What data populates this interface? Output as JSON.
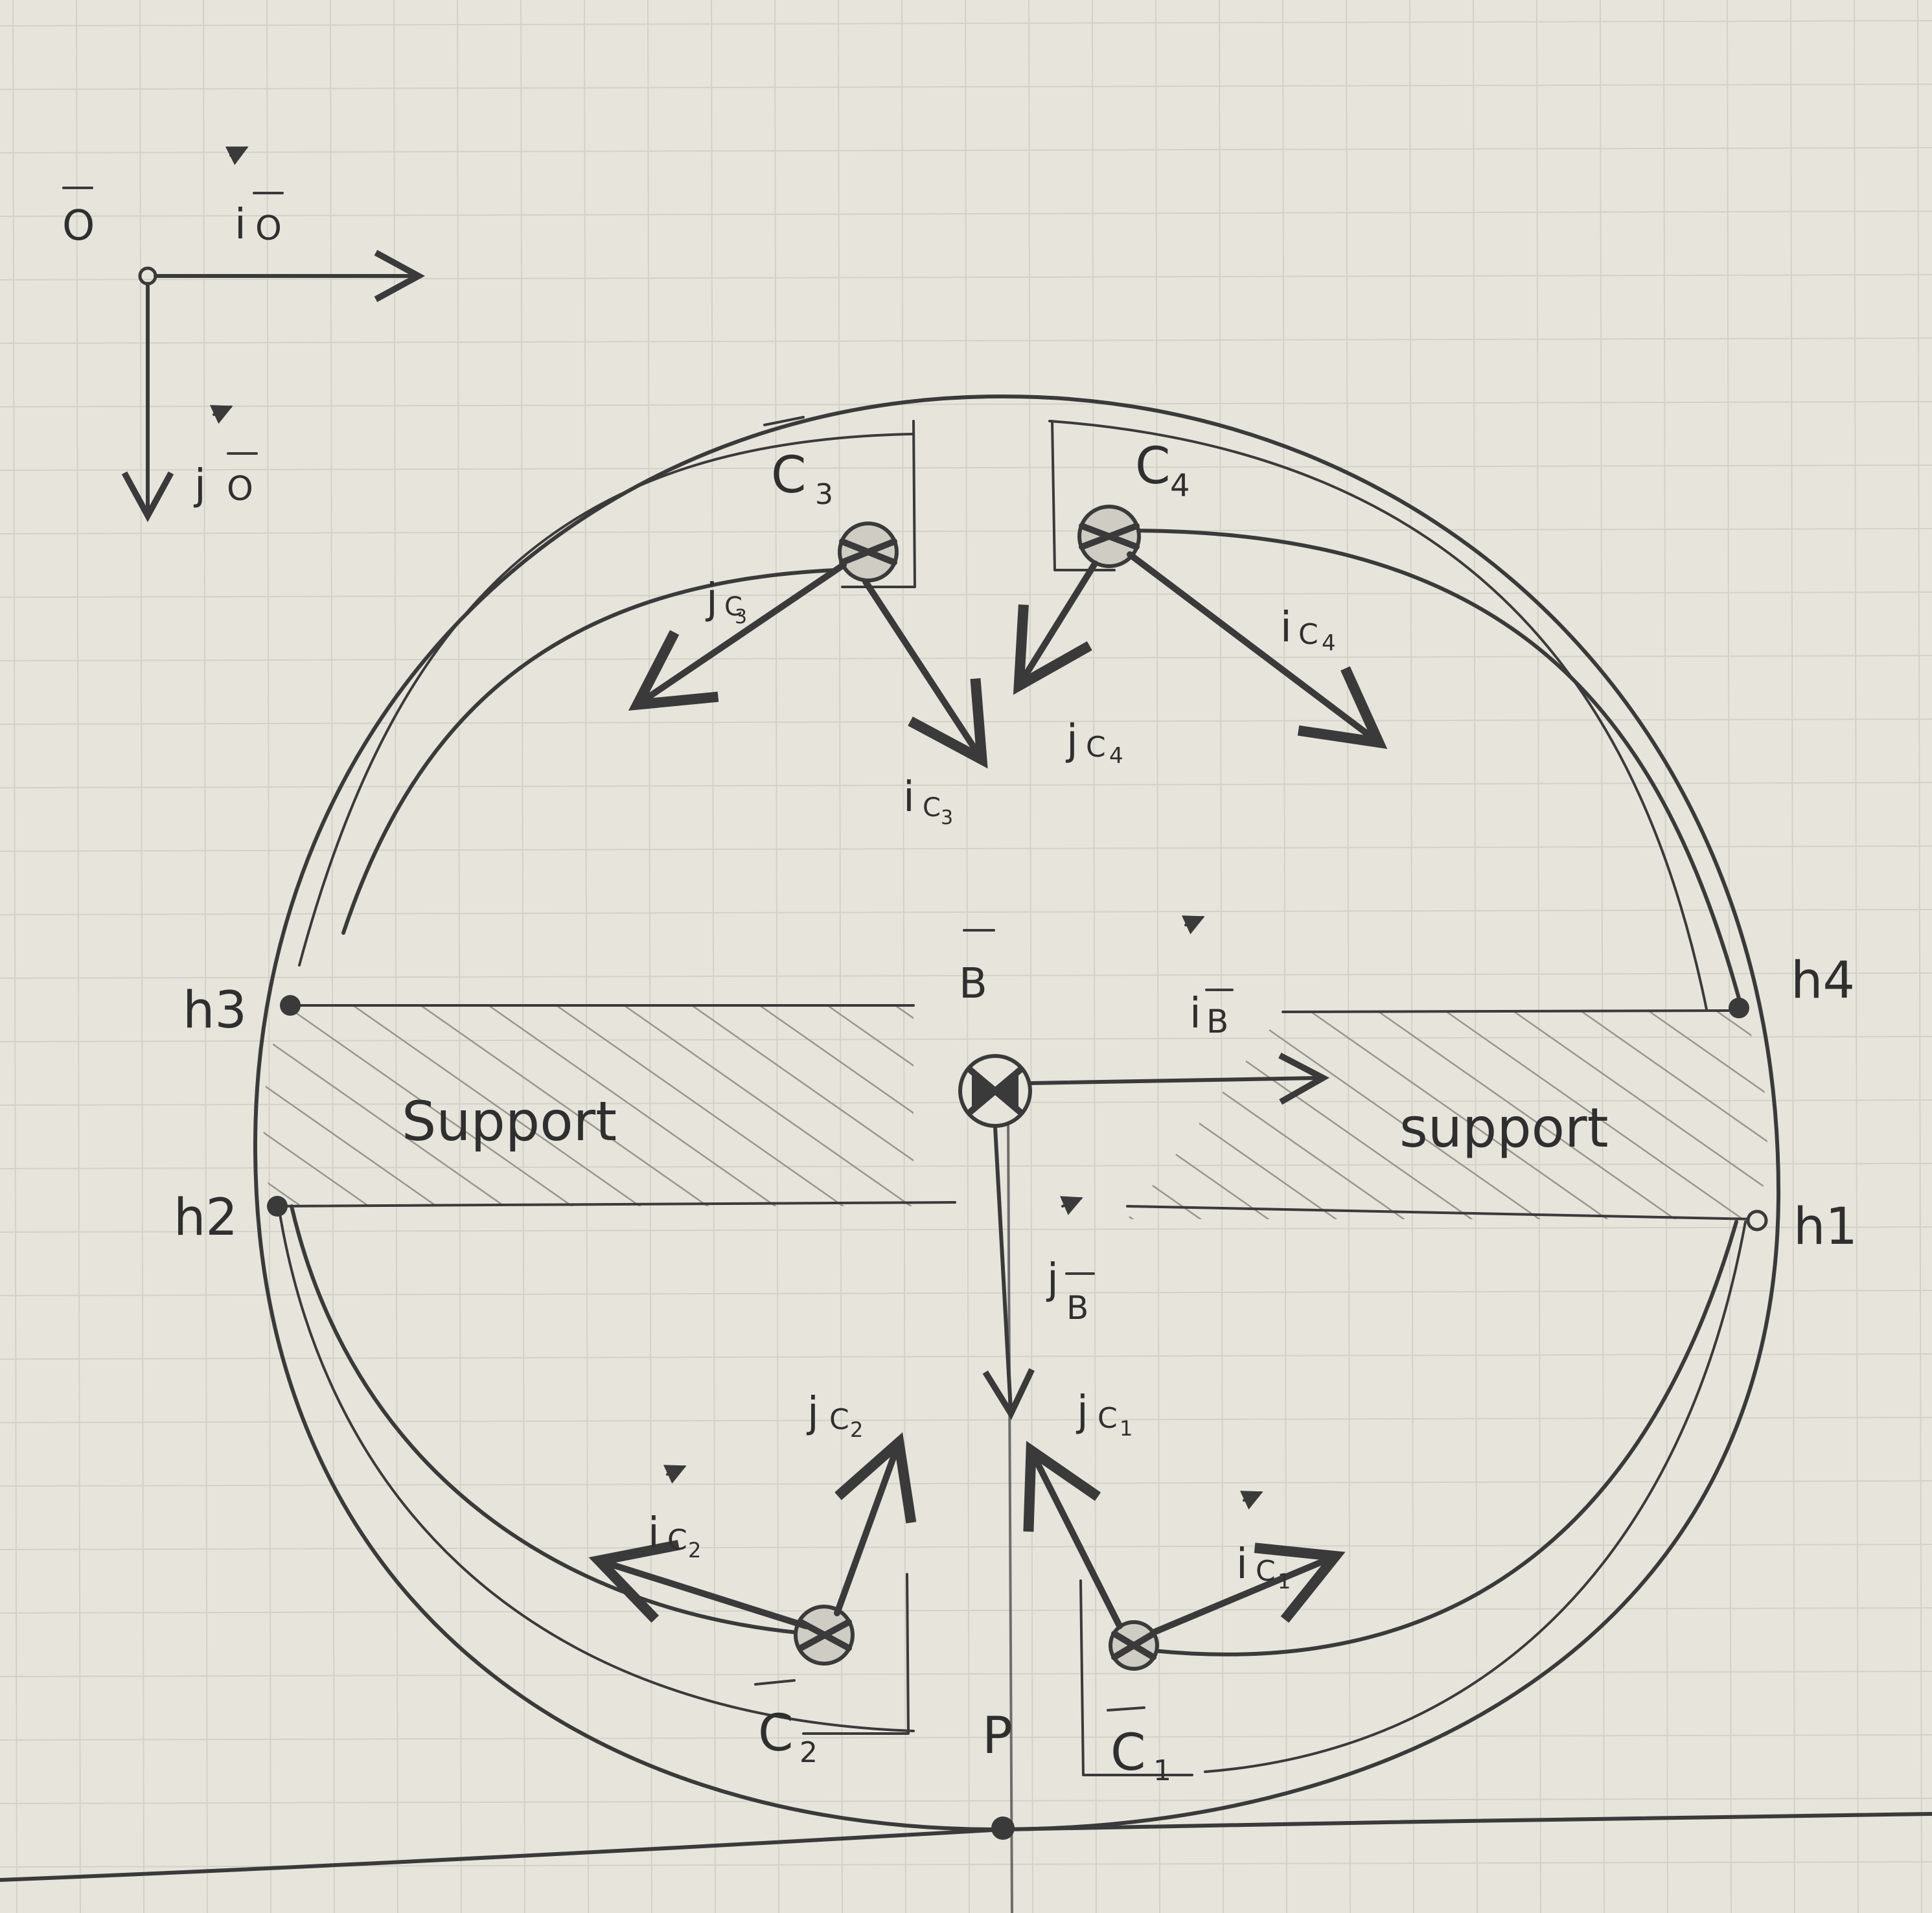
{
  "frames": {
    "origin": {
      "point": "O",
      "i": "i",
      "j": "j",
      "sub": "O"
    },
    "body": {
      "point": "B",
      "i": "i",
      "j": "j",
      "sub": "B"
    }
  },
  "cars": [
    {
      "name": "C",
      "sub": "1",
      "i": "i",
      "j": "j"
    },
    {
      "name": "C",
      "sub": "2",
      "i": "i",
      "j": "j"
    },
    {
      "name": "C",
      "sub": "3",
      "i": "i",
      "j": "j"
    },
    {
      "name": "C",
      "sub": "4",
      "i": "i",
      "j": "j"
    }
  ],
  "hinges": [
    "h1",
    "h2",
    "h3",
    "h4"
  ],
  "supports": [
    "Support",
    "support"
  ],
  "contact_point": "P",
  "colors": {
    "ink": "#3a3a3a",
    "paper": "#e7e4dc",
    "grid": "#d4d1c8"
  }
}
